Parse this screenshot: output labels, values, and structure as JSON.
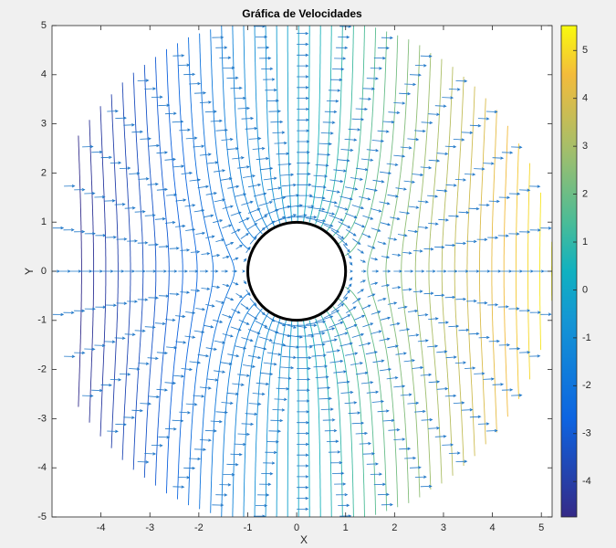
{
  "chart_data": {
    "type": "contour-quiver",
    "title": "Gráfica de Velocidades",
    "xlabel": "X",
    "ylabel": "Y",
    "xlim": [
      -5,
      5.22
    ],
    "ylim": [
      -5,
      5
    ],
    "xticks": [
      -4,
      -3,
      -2,
      -1,
      0,
      1,
      2,
      3,
      4,
      5
    ],
    "yticks": [
      -5,
      -4,
      -3,
      -2,
      -1,
      0,
      1,
      2,
      3,
      4,
      5
    ],
    "cylinder_radius": 1,
    "arrow_color": "#1f77c8",
    "colorbar": {
      "clim": [
        -4.74,
        5.52
      ],
      "ticks": [
        -4,
        -3,
        -2,
        -1,
        0,
        1,
        2,
        3,
        4,
        5
      ]
    }
  }
}
